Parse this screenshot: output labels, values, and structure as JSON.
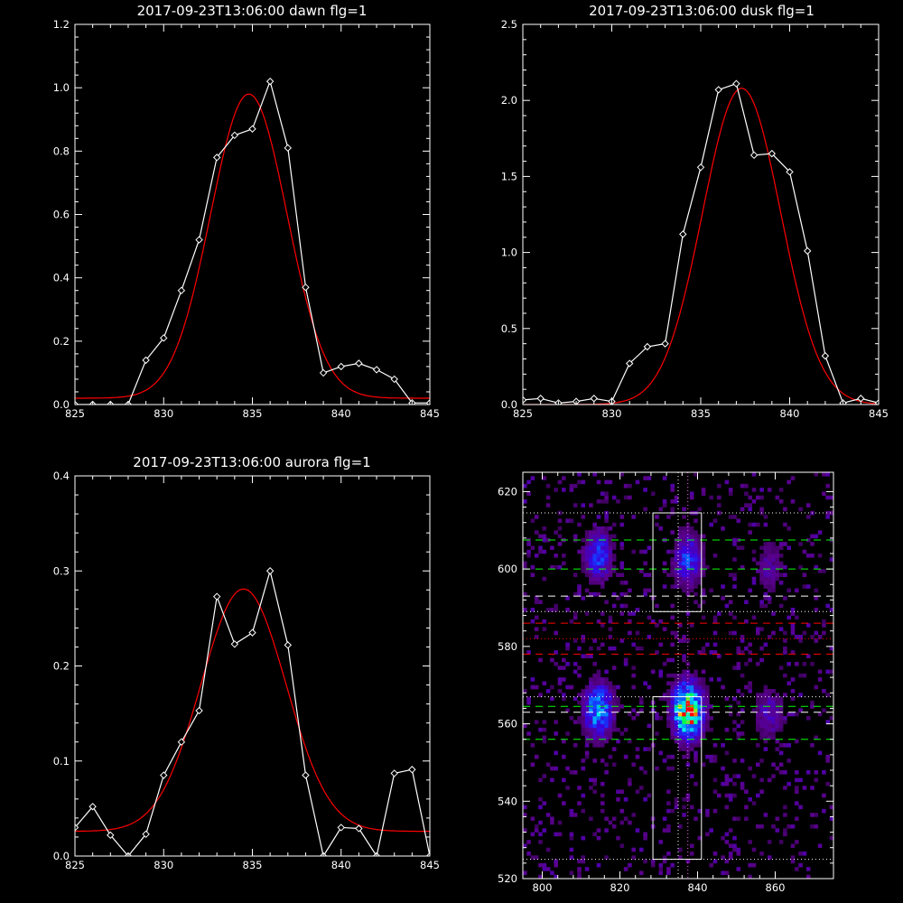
{
  "chart_data": [
    {
      "type": "line",
      "title": "2017-09-23T13:06:00 dawn flg=1",
      "xlim": [
        825,
        845
      ],
      "ylim": [
        0,
        1.2
      ],
      "x_ticks": [
        "825",
        "830",
        "835",
        "840",
        "845"
      ],
      "y_ticks": [
        "0.0",
        "0.2",
        "0.4",
        "0.6",
        "0.8",
        "1.0",
        "1.2"
      ],
      "series": [
        {
          "style": "data",
          "color": "#ffffff",
          "x": [
            825,
            826,
            827,
            828,
            829,
            830,
            831,
            832,
            833,
            834,
            835,
            836,
            837,
            838,
            839,
            840,
            841,
            842,
            843,
            844,
            845
          ],
          "y": [
            0,
            0,
            0,
            0,
            0.14,
            0.21,
            0.36,
            0.52,
            0.78,
            0.85,
            0.87,
            1.02,
            0.81,
            0.37,
            0.1,
            0.12,
            0.13,
            0.11,
            0.08,
            0.005,
            0.005
          ]
        },
        {
          "style": "fit",
          "color": "#ff0000",
          "gauss": {
            "a": 0.96,
            "mu": 834.8,
            "sigma": 2.15,
            "c": 0.02
          }
        }
      ]
    },
    {
      "type": "line",
      "title": "2017-09-23T13:06:00 dusk flg=1",
      "xlim": [
        825,
        845
      ],
      "ylim": [
        0,
        2.5
      ],
      "x_ticks": [
        "825",
        "830",
        "835",
        "840",
        "845"
      ],
      "y_ticks": [
        "0.0",
        "0.5",
        "1.0",
        "1.5",
        "2.0",
        "2.5"
      ],
      "series": [
        {
          "style": "data",
          "color": "#ffffff",
          "x": [
            825,
            826,
            827,
            828,
            829,
            830,
            831,
            832,
            833,
            834,
            835,
            836,
            837,
            838,
            839,
            840,
            841,
            842,
            843,
            844,
            845
          ],
          "y": [
            0.03,
            0.04,
            0.01,
            0.02,
            0.04,
            0.02,
            0.27,
            0.38,
            0.4,
            1.12,
            1.56,
            2.07,
            2.11,
            1.64,
            1.65,
            1.53,
            1.01,
            0.32,
            0.01,
            0.04,
            0.01
          ]
        },
        {
          "style": "fit",
          "color": "#ff0000",
          "gauss": {
            "a": 2.08,
            "mu": 837.3,
            "sigma": 2.2,
            "c": 0.0
          }
        }
      ]
    },
    {
      "type": "line",
      "title": "2017-09-23T13:06:00 aurora flg=1",
      "xlim": [
        825,
        845
      ],
      "ylim": [
        0,
        0.4
      ],
      "x_ticks": [
        "825",
        "830",
        "835",
        "840",
        "845"
      ],
      "y_ticks": [
        "0.0",
        "0.1",
        "0.2",
        "0.3",
        "0.4"
      ],
      "series": [
        {
          "style": "data",
          "color": "#ffffff",
          "x": [
            825,
            826,
            827,
            828,
            829,
            830,
            831,
            832,
            833,
            834,
            835,
            836,
            837,
            838,
            839,
            840,
            841,
            842,
            843,
            844,
            845
          ],
          "y": [
            0.03,
            0.052,
            0.022,
            0.0,
            0.023,
            0.085,
            0.12,
            0.153,
            0.273,
            0.223,
            0.235,
            0.3,
            0.222,
            0.085,
            0.0,
            0.03,
            0.029,
            0.0,
            0.087,
            0.091,
            0.0
          ]
        },
        {
          "style": "fit",
          "color": "#ff0000",
          "gauss": {
            "a": 0.255,
            "mu": 834.5,
            "sigma": 2.4,
            "c": 0.026
          }
        }
      ]
    },
    {
      "type": "heatmap",
      "xlim": [
        795,
        875
      ],
      "ylim": [
        520,
        625
      ],
      "x_ticks": [
        "800",
        "820",
        "840",
        "860"
      ],
      "y_ticks": [
        "520",
        "540",
        "560",
        "580",
        "600",
        "620"
      ],
      "blobs": [
        {
          "x": 814,
          "y": 563,
          "amp": 0.55
        },
        {
          "x": 814,
          "y": 603,
          "amp": 0.35
        },
        {
          "x": 837,
          "y": 563,
          "amp": 1.0
        },
        {
          "x": 837,
          "y": 602,
          "amp": 0.35
        },
        {
          "x": 858,
          "y": 562,
          "amp": 0.2
        },
        {
          "x": 858,
          "y": 600,
          "amp": 0.15
        }
      ],
      "boxes": [
        {
          "x0": 828.5,
          "x1": 841,
          "y0": 525,
          "y1": 567
        },
        {
          "x0": 828.5,
          "x1": 841,
          "y0": 589,
          "y1": 614.5
        }
      ],
      "hlines": [
        {
          "y": 614.5,
          "color": "#ffffff",
          "dash": "dot"
        },
        {
          "y": 607.5,
          "color": "#00ff00",
          "dash": "dash"
        },
        {
          "y": 600.0,
          "color": "#00ff00",
          "dash": "dash"
        },
        {
          "y": 593.0,
          "color": "#ffffff",
          "dash": "dash"
        },
        {
          "y": 589.0,
          "color": "#ffffff",
          "dash": "dot"
        },
        {
          "y": 586.0,
          "color": "#ff0000",
          "dash": "dash"
        },
        {
          "y": 582.0,
          "color": "#ff0000",
          "dash": "dot"
        },
        {
          "y": 578.0,
          "color": "#ff0000",
          "dash": "dash"
        },
        {
          "y": 567.0,
          "color": "#ffffff",
          "dash": "dot"
        },
        {
          "y": 564.5,
          "color": "#00ff00",
          "dash": "dash"
        },
        {
          "y": 563.0,
          "color": "#ffffff",
          "dash": "dash"
        },
        {
          "y": 556.0,
          "color": "#00ff00",
          "dash": "dash"
        },
        {
          "y": 525.0,
          "color": "#ffffff",
          "dash": "dot"
        }
      ],
      "vlines": [
        {
          "x": 835,
          "color": "#ffffff",
          "dash": "dot"
        },
        {
          "x": 837.5,
          "color": "#ff66ff",
          "dash": "dot"
        }
      ]
    }
  ]
}
